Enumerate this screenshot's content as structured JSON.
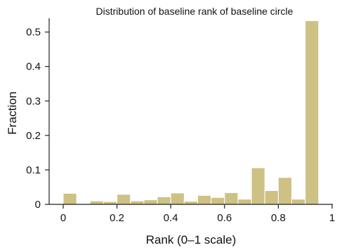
{
  "chart_data": {
    "type": "bar",
    "title": "Distribution of baseline rank of baseline circle",
    "xlabel": "Rank (0–1 scale)",
    "ylabel": "Fraction",
    "xlim": [
      0,
      1
    ],
    "ylim": [
      0,
      0.54
    ],
    "xticks": [
      0,
      0.2,
      0.4,
      0.6,
      0.8,
      1
    ],
    "xtick_labels": [
      "0",
      "0.2",
      "0.4",
      "0.6",
      "0.8",
      "1"
    ],
    "yticks": [
      0,
      0.1,
      0.2,
      0.3,
      0.4,
      0.5
    ],
    "ytick_labels": [
      "0",
      "0.1",
      "0.2",
      "0.3",
      "0.4",
      "0.5"
    ],
    "grid": false,
    "bar_color": "#cdc184",
    "bins": [
      {
        "x0": 0.0,
        "x1": 0.05,
        "value": 0.032
      },
      {
        "x0": 0.05,
        "x1": 0.1,
        "value": 0.0
      },
      {
        "x0": 0.1,
        "x1": 0.15,
        "value": 0.01
      },
      {
        "x0": 0.15,
        "x1": 0.2,
        "value": 0.008
      },
      {
        "x0": 0.2,
        "x1": 0.25,
        "value": 0.029
      },
      {
        "x0": 0.25,
        "x1": 0.3,
        "value": 0.01
      },
      {
        "x0": 0.3,
        "x1": 0.35,
        "value": 0.013
      },
      {
        "x0": 0.35,
        "x1": 0.4,
        "value": 0.022
      },
      {
        "x0": 0.4,
        "x1": 0.45,
        "value": 0.033
      },
      {
        "x0": 0.45,
        "x1": 0.5,
        "value": 0.009
      },
      {
        "x0": 0.5,
        "x1": 0.55,
        "value": 0.026
      },
      {
        "x0": 0.55,
        "x1": 0.6,
        "value": 0.02
      },
      {
        "x0": 0.6,
        "x1": 0.65,
        "value": 0.034
      },
      {
        "x0": 0.65,
        "x1": 0.7,
        "value": 0.015
      },
      {
        "x0": 0.7,
        "x1": 0.75,
        "value": 0.106
      },
      {
        "x0": 0.75,
        "x1": 0.8,
        "value": 0.04
      },
      {
        "x0": 0.8,
        "x1": 0.85,
        "value": 0.078
      },
      {
        "x0": 0.85,
        "x1": 0.9,
        "value": 0.015
      },
      {
        "x0": 0.9,
        "x1": 0.95,
        "value": 0.533
      }
    ]
  }
}
